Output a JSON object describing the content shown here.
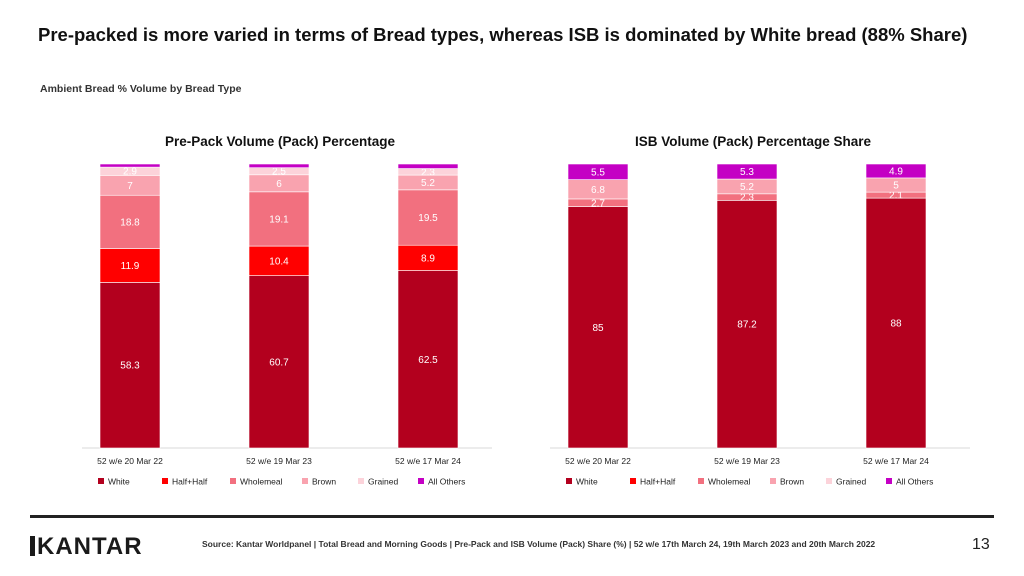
{
  "headline": "Pre-packed is more varied in terms of Bread types, whereas ISB is dominated by White bread (88% Share)",
  "subtitle": "Ambient Bread % Volume by Bread Type",
  "colors": {
    "White": "#b3001e",
    "Half+Half": "#ff0000",
    "Wholemeal": "#f2707f",
    "Brown": "#f9a3af",
    "Grained": "#fcd3da",
    "All Others": "#c400c4"
  },
  "chart_data": [
    {
      "type": "bar",
      "stacked": true,
      "title": "Pre-Pack Volume (Pack) Percentage",
      "categories": [
        "52 w/e 20 Mar 22",
        "52 w/e 19 Mar 23",
        "52 w/e 17 Mar 24"
      ],
      "series": [
        {
          "name": "White",
          "values": [
            58.3,
            60.7,
            62.5
          ],
          "labels": [
            "58.3",
            "60.7",
            "62.5"
          ]
        },
        {
          "name": "Half+Half",
          "values": [
            11.9,
            10.4,
            8.9
          ],
          "labels": [
            "11.9",
            "10.4",
            "8.9"
          ]
        },
        {
          "name": "Wholemeal",
          "values": [
            18.8,
            19.1,
            19.5
          ],
          "labels": [
            "18.8",
            "19.1",
            "19.5"
          ]
        },
        {
          "name": "Brown",
          "values": [
            7,
            6,
            5.2
          ],
          "labels": [
            "7",
            "6",
            "5.2"
          ]
        },
        {
          "name": "Grained",
          "values": [
            2.9,
            2.5,
            2.3
          ],
          "labels": [
            "2.9",
            "2.5",
            "2.3"
          ]
        },
        {
          "name": "All Others",
          "values": [
            1.1,
            1.3,
            1.6
          ],
          "labels": [
            "",
            "",
            ""
          ]
        }
      ],
      "ylim": [
        0,
        100
      ],
      "legend": [
        "White",
        "Half+Half",
        "Wholemeal",
        "Brown",
        "Grained",
        "All Others"
      ]
    },
    {
      "type": "bar",
      "stacked": true,
      "title": "ISB Volume (Pack) Percentage Share",
      "categories": [
        "52 w/e 20 Mar 22",
        "52 w/e 19 Mar 23",
        "52 w/e 17 Mar 24"
      ],
      "series": [
        {
          "name": "White",
          "values": [
            85,
            87.2,
            88
          ],
          "labels": [
            "85",
            "87.2",
            "88"
          ]
        },
        {
          "name": "Half+Half",
          "values": [
            0,
            0,
            0
          ],
          "labels": [
            "",
            "",
            ""
          ]
        },
        {
          "name": "Wholemeal",
          "values": [
            2.7,
            2.3,
            2.1
          ],
          "labels": [
            "2.7",
            "2.3",
            "2.1"
          ]
        },
        {
          "name": "Brown",
          "values": [
            6.8,
            5.2,
            5
          ],
          "labels": [
            "6.8",
            "5.2",
            "5"
          ]
        },
        {
          "name": "Grained",
          "values": [
            0,
            0,
            0
          ],
          "labels": [
            "",
            "",
            ""
          ]
        },
        {
          "name": "All Others",
          "values": [
            5.5,
            5.3,
            4.9
          ],
          "labels": [
            "5.5",
            "5.3",
            "4.9"
          ]
        }
      ],
      "ylim": [
        0,
        100
      ],
      "legend": [
        "White",
        "Half+Half",
        "Wholemeal",
        "Brown",
        "Grained",
        "All Others"
      ]
    }
  ],
  "footer": {
    "logo": "KANTAR",
    "source": "Source: Kantar Worldpanel | Total Bread and Morning Goods | Pre-Pack and ISB Volume (Pack) Share (%) | 52 w/e 17th March 24, 19th March 2023 and 20th March 2022",
    "page_number": "13"
  }
}
